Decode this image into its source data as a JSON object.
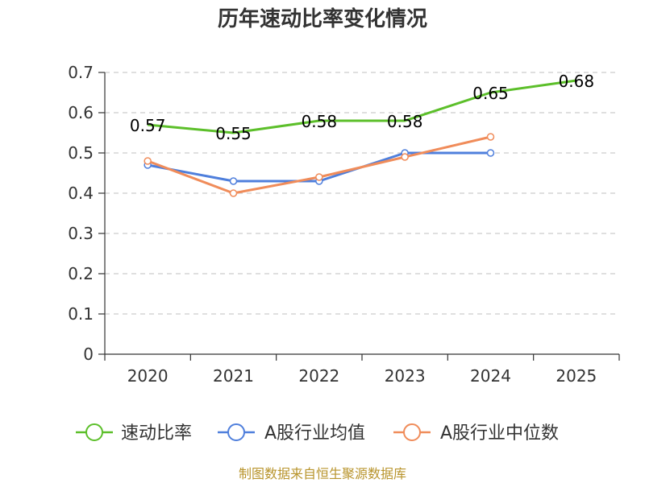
{
  "chart_data": {
    "type": "line",
    "title": "历年速动比率变化情况",
    "xlabel": "",
    "ylabel": "",
    "categories": [
      "2020",
      "2021",
      "2022",
      "2023",
      "2024",
      "2025"
    ],
    "ylim": [
      0,
      0.7
    ],
    "yticks": [
      "0",
      "0.1",
      "0.2",
      "0.3",
      "0.4",
      "0.5",
      "0.6",
      "0.7"
    ],
    "ytick_values": [
      0,
      0.1,
      0.2,
      0.3,
      0.4,
      0.5,
      0.6,
      0.7
    ],
    "grid": true,
    "legend_position": "bottom",
    "series": [
      {
        "name": "速动比率",
        "color": "#5cbf2a",
        "values": [
          0.57,
          0.55,
          0.58,
          0.58,
          0.65,
          0.68
        ],
        "labels": [
          "0.57",
          "0.55",
          "0.58",
          "0.58",
          "0.65",
          "0.68"
        ],
        "markers": false
      },
      {
        "name": "A股行业均值",
        "color": "#4f7fdc",
        "values": [
          0.47,
          0.43,
          0.43,
          0.5,
          0.5,
          null
        ],
        "markers": true
      },
      {
        "name": "A股行业中位数",
        "color": "#f08c5a",
        "values": [
          0.48,
          0.4,
          0.44,
          0.49,
          0.54,
          null
        ],
        "markers": true
      }
    ]
  },
  "source": "制图数据来自恒生聚源数据库"
}
